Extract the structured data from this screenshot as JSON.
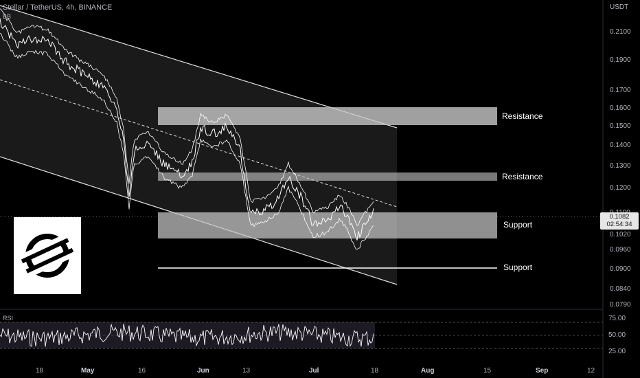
{
  "header": {
    "symbol_line": "Stellar / TetherUS, 4h, BINANCE",
    "indicator": "BB"
  },
  "price_axis": {
    "unit": "USDT",
    "ticks": [
      "0.2100",
      "0.1900",
      "0.1700",
      "0.1600",
      "0.1500",
      "0.1400",
      "0.1300",
      "0.1200",
      "0.1100",
      "0.1020",
      "0.0960",
      "0.0900",
      "0.0840",
      "0.0790"
    ]
  },
  "current_price": {
    "value": "0.1082",
    "countdown": "02:54:34"
  },
  "rsi": {
    "label": "RSI",
    "ticks": [
      "75.00",
      "50.00",
      "25.00"
    ]
  },
  "time_axis": {
    "ticks": [
      "18",
      "May",
      "16",
      "Jun",
      "13",
      "Jul",
      "18",
      "Aug",
      "15",
      "Sep",
      "12"
    ]
  },
  "annotations": {
    "resistance_upper": "Resistance",
    "resistance_lower": "Resistance",
    "support_upper": "Support",
    "support_lower": "Support"
  },
  "colors": {
    "background": "#000000",
    "line": "#ffffff",
    "zone": "#c8c8c8"
  }
}
